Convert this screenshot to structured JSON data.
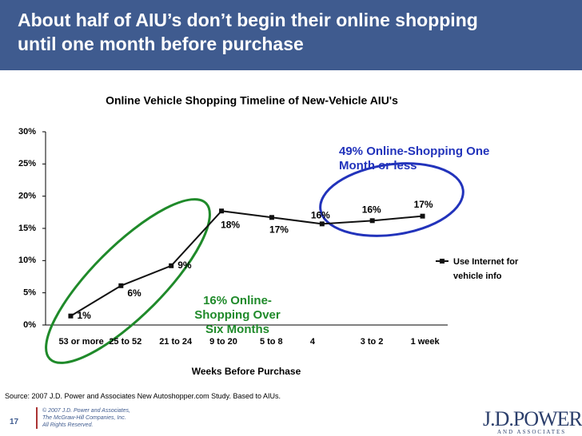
{
  "slide": {
    "heading": "About half of AIU’s don’t begin their online shopping until one month before purchase",
    "source": "Source: 2007 J.D. Power and Associates New Autoshopper.com Study.  Based to AIUs.",
    "page_number": "17",
    "copyright": [
      "© 2007 J.D. Power and Associates,",
      "The McGraw-Hill Companies, Inc.",
      "All Rights Reserved."
    ],
    "logo": "J.D.POWER",
    "logo_sub": "AND ASSOCIATES"
  },
  "chart_data": {
    "type": "line",
    "title": "Online Vehicle Shopping Timeline of New-Vehicle AIU's",
    "x_label": "Weeks Before Purchase",
    "categories": [
      "53 or more",
      "25 to 52",
      "21 to 24",
      "9 to 20",
      "5 to 8",
      "4",
      "3 to 2",
      "1 week"
    ],
    "series": [
      {
        "name": "Use Internet for vehicle info",
        "color": "#111111",
        "values": [
          1.4,
          6.1,
          9.2,
          17.7,
          16.7,
          15.7,
          16.2,
          16.9
        ],
        "value_labels": [
          "1%",
          "6%",
          "9%",
          "18%",
          "17%",
          "16%",
          "16%",
          "17%"
        ]
      }
    ],
    "ylim": [
      0,
      30
    ],
    "yticks": [
      {
        "value": 0,
        "label": "0%"
      },
      {
        "value": 5,
        "label": "5%"
      },
      {
        "value": 10,
        "label": "10%"
      },
      {
        "value": 15,
        "label": "15%"
      },
      {
        "value": 20,
        "label": "20%"
      },
      {
        "value": 25,
        "label": "25%"
      },
      {
        "value": 30,
        "label": "30%"
      }
    ],
    "legend": "right",
    "annotations": [
      "49% Online-Shopping One Month or less",
      "16% Online-Shopping Over Six Months"
    ]
  }
}
